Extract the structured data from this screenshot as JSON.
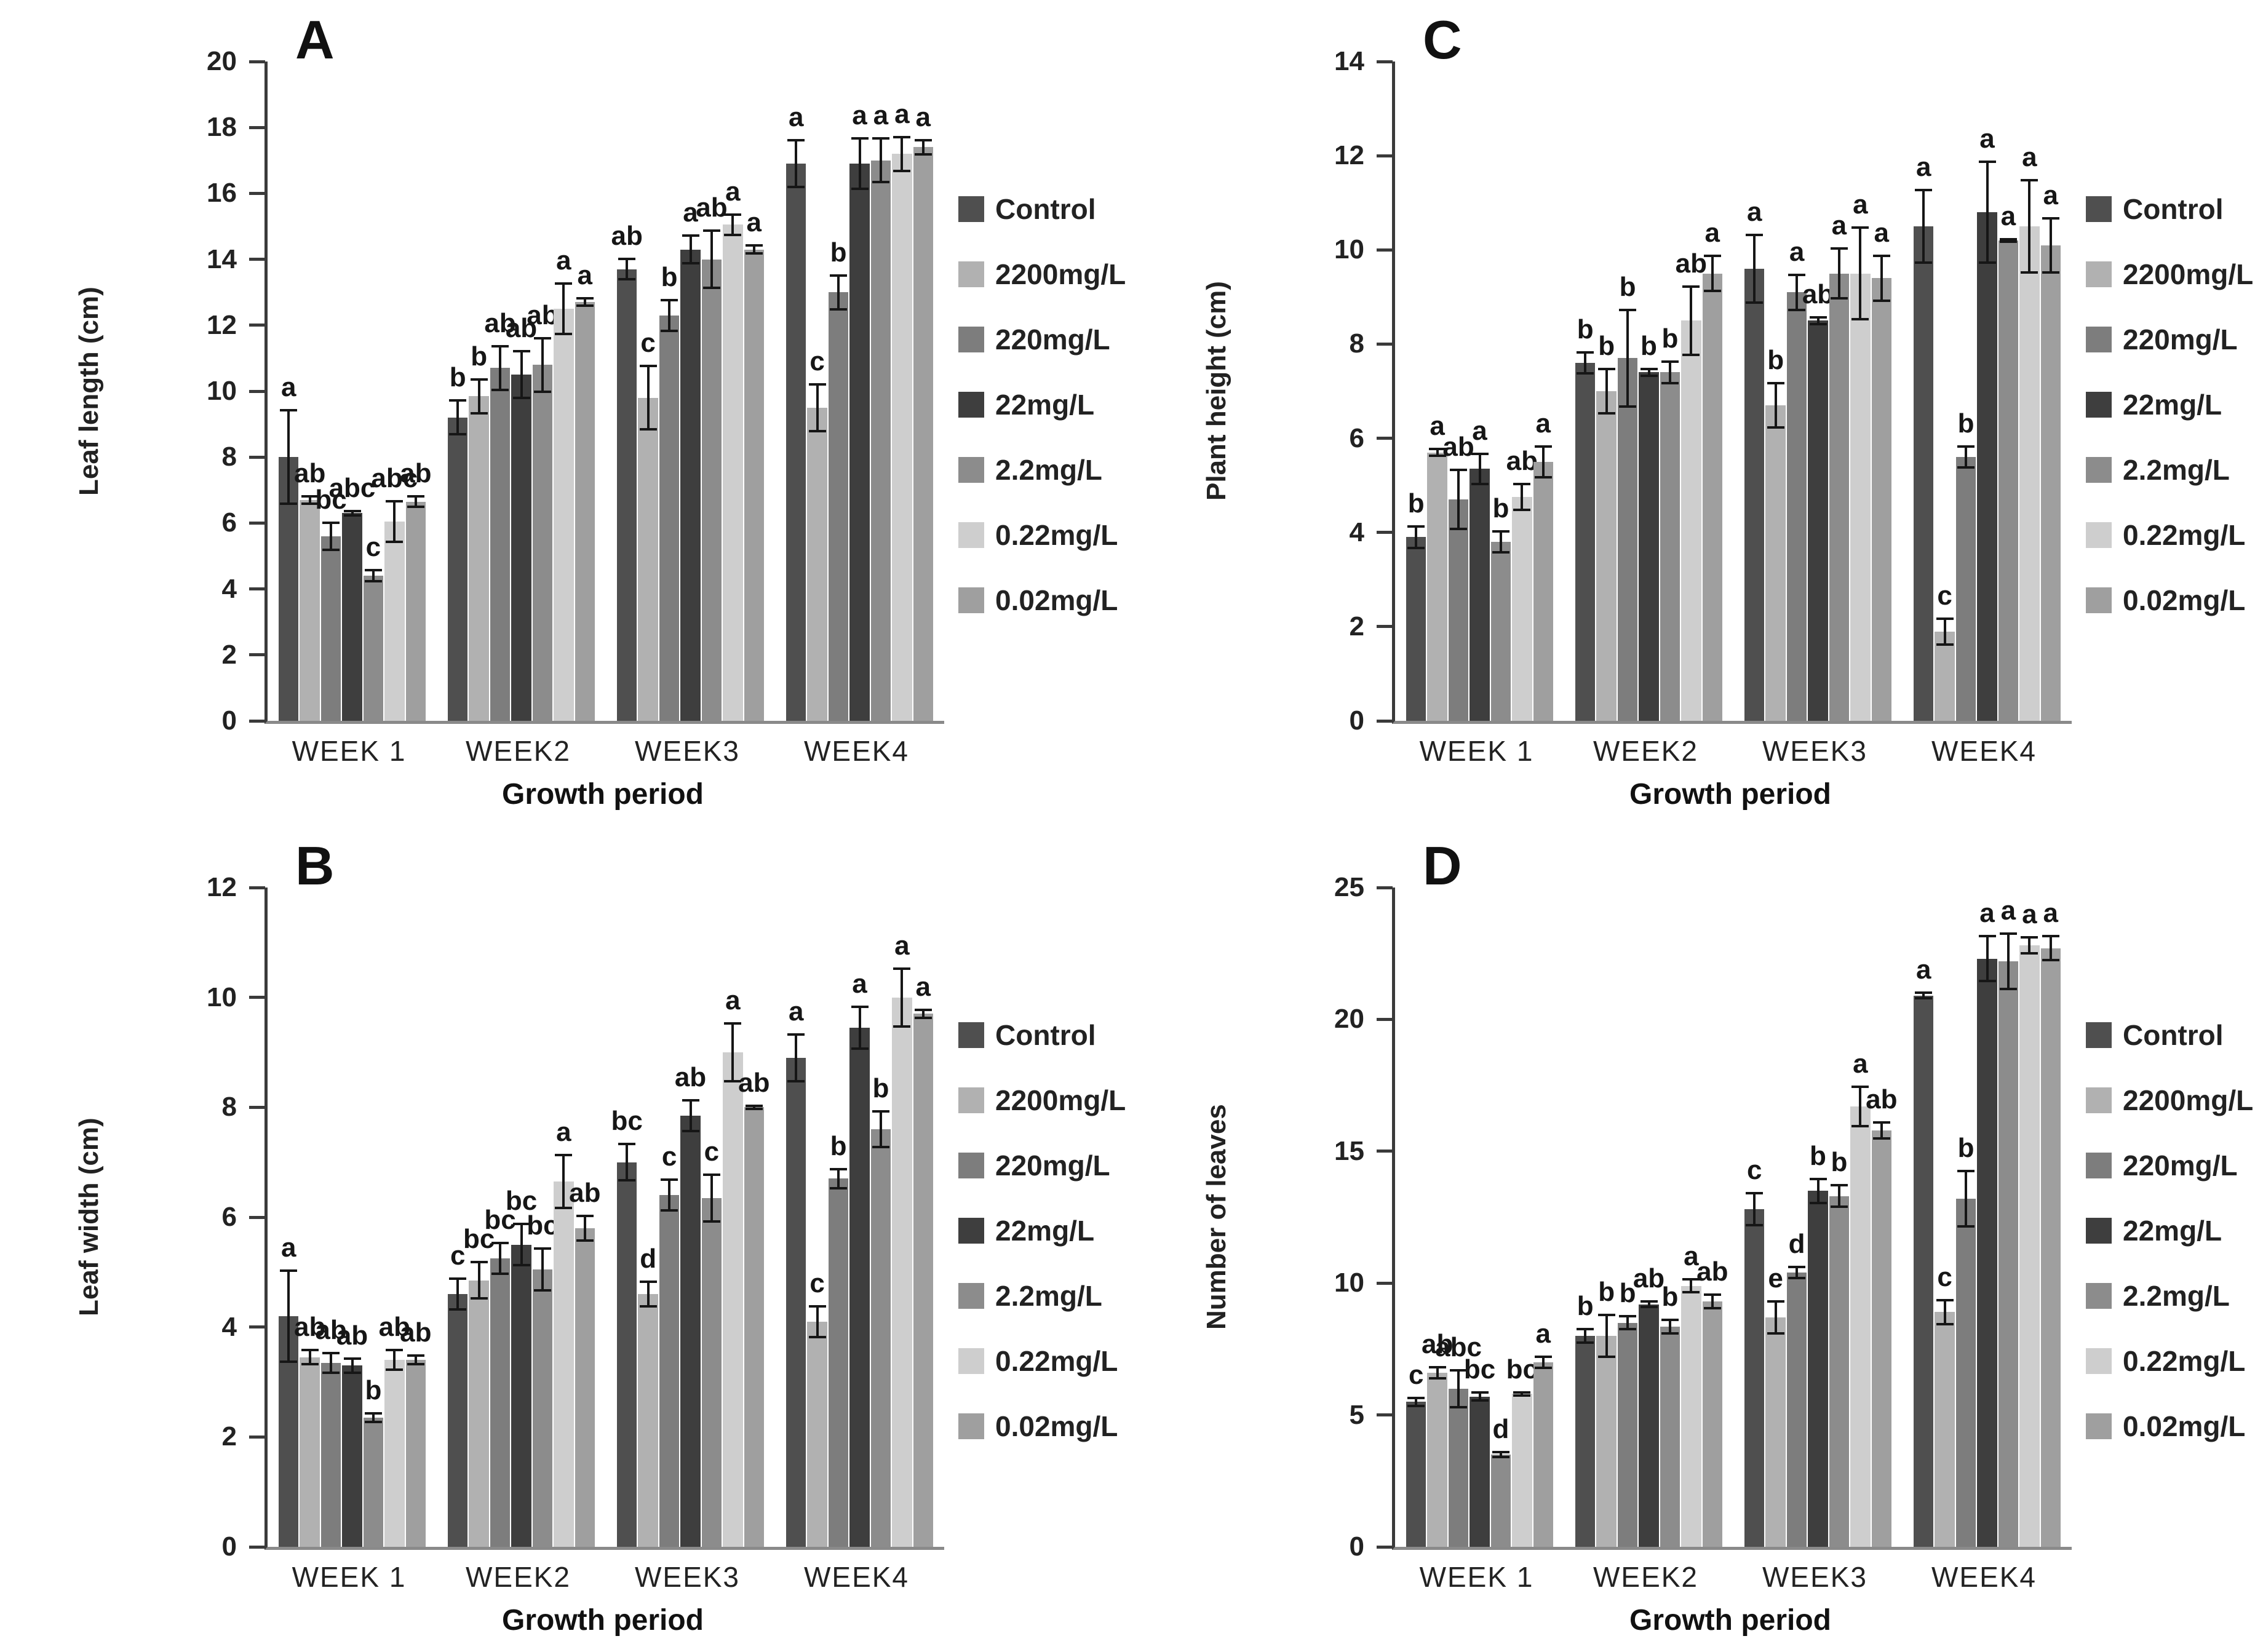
{
  "figure": {
    "description": "Four-panel grouped bar figure of plant growth parameters over four weeks under different treatment concentrations",
    "x_axis_title": "Growth period",
    "categories": [
      "WEEK 1",
      "WEEK2",
      "WEEK3",
      "WEEK4"
    ],
    "colors": {
      "axis": "#3a3a3a",
      "error_bar": "#161616",
      "text": "#1a1a1a"
    }
  },
  "chart_data": {
    "type": "bar",
    "layout": "2x2-panels",
    "grid": false,
    "legend_position": "right",
    "xlabel": "Growth period",
    "categories": [
      "WEEK 1",
      "WEEK2",
      "WEEK3",
      "WEEK4"
    ],
    "legend_entries": [
      {
        "label": "Control",
        "color": "#4f4f4f"
      },
      {
        "label": "2200mg/L",
        "color": "#b1b1b1"
      },
      {
        "label": "220mg/L",
        "color": "#7d7d7d"
      },
      {
        "label": "22mg/L",
        "color": "#3e3e3e"
      },
      {
        "label": "2.2mg/L",
        "color": "#8c8c8c"
      },
      {
        "label": "0.22mg/L",
        "color": "#cecece"
      },
      {
        "label": "0.02mg/L",
        "color": "#9f9f9f"
      }
    ],
    "panels": [
      {
        "panel_label": "A",
        "ylabel": "Leaf length (cm)",
        "ylim": [
          0,
          20
        ],
        "ytick_step": 2,
        "series": [
          {
            "name": "Control",
            "values": [
              8.0,
              9.2,
              13.7,
              16.9
            ],
            "errors": [
              1.45,
              0.55,
              0.35,
              0.75
            ],
            "letters": [
              "a",
              "b",
              "ab",
              "a"
            ]
          },
          {
            "name": "2200mg/L",
            "values": [
              6.7,
              9.85,
              9.8,
              9.5
            ],
            "errors": [
              0.15,
              0.55,
              1.0,
              0.75
            ],
            "letters": [
              "ab",
              "b",
              "c",
              "c"
            ]
          },
          {
            "name": "220mg/L",
            "values": [
              5.6,
              10.7,
              12.3,
              13.0
            ],
            "errors": [
              0.45,
              0.7,
              0.5,
              0.55
            ],
            "letters": [
              "bc",
              "ab",
              "b",
              "b"
            ]
          },
          {
            "name": "22mg/L",
            "values": [
              6.3,
              10.5,
              14.3,
              16.9
            ],
            "errors": [
              0.1,
              0.75,
              0.45,
              0.8
            ],
            "letters": [
              "abc",
              "ab",
              "a",
              "a"
            ]
          },
          {
            "name": "2.2mg/L",
            "values": [
              4.4,
              10.8,
              14.0,
              17.0
            ],
            "errors": [
              0.2,
              0.85,
              0.9,
              0.7
            ],
            "letters": [
              "c",
              "ab",
              "ab",
              "a"
            ]
          },
          {
            "name": "0.22mg/L",
            "values": [
              6.05,
              12.5,
              15.05,
              17.2
            ],
            "errors": [
              0.65,
              0.8,
              0.35,
              0.55
            ],
            "letters": [
              "abc",
              "a",
              "a",
              "a"
            ]
          },
          {
            "name": "0.02mg/L",
            "values": [
              6.65,
              12.7,
              14.3,
              17.4
            ],
            "errors": [
              0.2,
              0.15,
              0.15,
              0.25
            ],
            "letters": [
              "ab",
              "a",
              "a",
              "a"
            ]
          }
        ]
      },
      {
        "panel_label": "C",
        "ylabel": "Plant height (cm)",
        "ylim": [
          0,
          14
        ],
        "ytick_step": 2,
        "series": [
          {
            "name": "Control",
            "values": [
              3.9,
              7.6,
              9.6,
              10.5
            ],
            "errors": [
              0.25,
              0.25,
              0.75,
              0.8
            ],
            "letters": [
              "b",
              "b",
              "a",
              "a"
            ]
          },
          {
            "name": "2200mg/L",
            "values": [
              5.7,
              7.0,
              6.7,
              1.9
            ],
            "errors": [
              0.1,
              0.5,
              0.5,
              0.3
            ],
            "letters": [
              "a",
              "b",
              "b",
              "c"
            ]
          },
          {
            "name": "220mg/L",
            "values": [
              4.7,
              7.7,
              9.1,
              5.6
            ],
            "errors": [
              0.65,
              1.05,
              0.4,
              0.25
            ],
            "letters": [
              "ab",
              "b",
              "a",
              "b"
            ]
          },
          {
            "name": "22mg/L",
            "values": [
              5.35,
              7.4,
              8.5,
              10.8
            ],
            "errors": [
              0.35,
              0.1,
              0.1,
              1.1
            ],
            "letters": [
              "a",
              "b",
              "ab",
              "a"
            ]
          },
          {
            "name": "2.2mg/L",
            "values": [
              3.8,
              7.4,
              9.5,
              10.2
            ],
            "errors": [
              0.25,
              0.25,
              0.55,
              0.05
            ],
            "letters": [
              "b",
              "b",
              "a",
              "a"
            ]
          },
          {
            "name": "0.22mg/L",
            "values": [
              4.75,
              8.5,
              9.5,
              10.5
            ],
            "errors": [
              0.3,
              0.75,
              1.0,
              1.0
            ],
            "letters": [
              "ab",
              "ab",
              "a",
              "a"
            ]
          },
          {
            "name": "0.02mg/L",
            "values": [
              5.5,
              9.5,
              9.4,
              10.1
            ],
            "errors": [
              0.35,
              0.4,
              0.5,
              0.6
            ],
            "letters": [
              "a",
              "a",
              "a",
              "a"
            ]
          }
        ]
      },
      {
        "panel_label": "B",
        "ylabel": "Leaf width (cm)",
        "ylim": [
          0,
          12
        ],
        "ytick_step": 2,
        "series": [
          {
            "name": "Control",
            "values": [
              4.2,
              4.6,
              7.0,
              8.9
            ],
            "errors": [
              0.85,
              0.3,
              0.35,
              0.45
            ],
            "letters": [
              "a",
              "c",
              "bc",
              "a"
            ]
          },
          {
            "name": "2200mg/L",
            "values": [
              3.45,
              4.85,
              4.6,
              4.1
            ],
            "errors": [
              0.15,
              0.35,
              0.25,
              0.3
            ],
            "letters": [
              "ab",
              "bc",
              "d",
              "c"
            ]
          },
          {
            "name": "220mg/L",
            "values": [
              3.35,
              5.25,
              6.4,
              6.7
            ],
            "errors": [
              0.2,
              0.3,
              0.3,
              0.2
            ],
            "letters": [
              "ab",
              "bc",
              "c",
              "b"
            ]
          },
          {
            "name": "22mg/L",
            "values": [
              3.3,
              5.5,
              7.85,
              9.45
            ],
            "errors": [
              0.15,
              0.4,
              0.3,
              0.4
            ],
            "letters": [
              "ab",
              "bc",
              "ab",
              "a"
            ]
          },
          {
            "name": "2.2mg/L",
            "values": [
              2.35,
              5.05,
              6.35,
              7.6
            ],
            "errors": [
              0.1,
              0.4,
              0.45,
              0.35
            ],
            "letters": [
              "b",
              "bc",
              "c",
              "b"
            ]
          },
          {
            "name": "0.22mg/L",
            "values": [
              3.4,
              6.65,
              9.0,
              10.0
            ],
            "errors": [
              0.2,
              0.5,
              0.55,
              0.55
            ],
            "letters": [
              "ab",
              "a",
              "a",
              "a"
            ]
          },
          {
            "name": "0.02mg/L",
            "values": [
              3.4,
              5.8,
              8.0,
              9.7
            ],
            "errors": [
              0.1,
              0.25,
              0.05,
              0.1
            ],
            "letters": [
              "ab",
              "ab",
              "ab",
              "a"
            ]
          }
        ]
      },
      {
        "panel_label": "D",
        "ylabel": "Number of leaves",
        "ylim": [
          0,
          25
        ],
        "ytick_step": 5,
        "series": [
          {
            "name": "Control",
            "values": [
              5.5,
              8.0,
              12.8,
              20.9
            ],
            "errors": [
              0.2,
              0.3,
              0.65,
              0.15
            ],
            "letters": [
              "c",
              "b",
              "c",
              "a"
            ]
          },
          {
            "name": "2200mg/L",
            "values": [
              6.6,
              8.0,
              8.7,
              8.9
            ],
            "errors": [
              0.25,
              0.85,
              0.65,
              0.5
            ],
            "letters": [
              "ab",
              "b",
              "e",
              "c"
            ]
          },
          {
            "name": "220mg/L",
            "values": [
              6.0,
              8.5,
              10.4,
              13.2
            ],
            "errors": [
              0.75,
              0.3,
              0.25,
              1.1
            ],
            "letters": [
              "abc",
              "b",
              "d",
              "b"
            ]
          },
          {
            "name": "22mg/L",
            "values": [
              5.7,
              9.2,
              13.5,
              22.3
            ],
            "errors": [
              0.2,
              0.15,
              0.5,
              0.9
            ],
            "letters": [
              "bc",
              "ab",
              "b",
              "a"
            ]
          },
          {
            "name": "2.2mg/L",
            "values": [
              3.5,
              8.35,
              13.3,
              22.2
            ],
            "errors": [
              0.15,
              0.3,
              0.45,
              1.1
            ],
            "letters": [
              "d",
              "b",
              "b",
              "a"
            ]
          },
          {
            "name": "0.22mg/L",
            "values": [
              5.8,
              9.9,
              16.7,
              22.8
            ],
            "errors": [
              0.1,
              0.3,
              0.8,
              0.35
            ],
            "letters": [
              "bc",
              "a",
              "a",
              "a"
            ]
          },
          {
            "name": "0.02mg/L",
            "values": [
              7.0,
              9.3,
              15.8,
              22.7
            ],
            "errors": [
              0.25,
              0.3,
              0.35,
              0.5
            ],
            "letters": [
              "a",
              "ab",
              "ab",
              "a"
            ]
          }
        ]
      }
    ]
  }
}
